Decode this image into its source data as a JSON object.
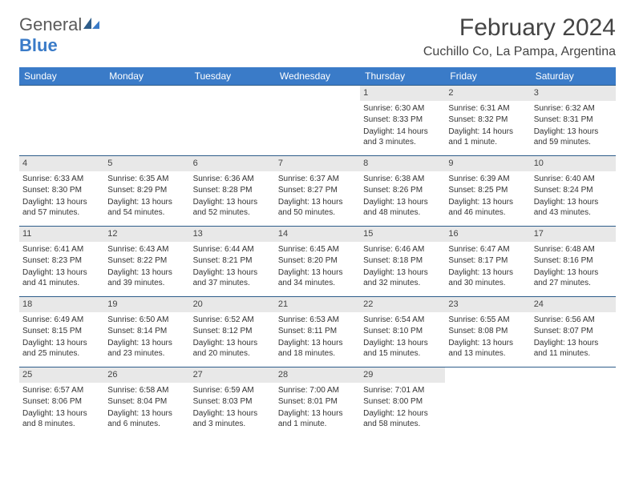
{
  "logo": {
    "text_general": "General",
    "text_blue": "Blue"
  },
  "title": "February 2024",
  "location": "Cuchillo Co, La Pampa, Argentina",
  "colors": {
    "header_bg": "#3a7bc8",
    "header_text": "#ffffff",
    "row_border": "#2e5d8a",
    "daynum_bg": "#e8e8e8",
    "body_text": "#333333"
  },
  "day_names": [
    "Sunday",
    "Monday",
    "Tuesday",
    "Wednesday",
    "Thursday",
    "Friday",
    "Saturday"
  ],
  "weeks": [
    [
      {
        "n": "",
        "sr": "",
        "ss": "",
        "dl": ""
      },
      {
        "n": "",
        "sr": "",
        "ss": "",
        "dl": ""
      },
      {
        "n": "",
        "sr": "",
        "ss": "",
        "dl": ""
      },
      {
        "n": "",
        "sr": "",
        "ss": "",
        "dl": ""
      },
      {
        "n": "1",
        "sr": "6:30 AM",
        "ss": "8:33 PM",
        "dl": "14 hours and 3 minutes."
      },
      {
        "n": "2",
        "sr": "6:31 AM",
        "ss": "8:32 PM",
        "dl": "14 hours and 1 minute."
      },
      {
        "n": "3",
        "sr": "6:32 AM",
        "ss": "8:31 PM",
        "dl": "13 hours and 59 minutes."
      }
    ],
    [
      {
        "n": "4",
        "sr": "6:33 AM",
        "ss": "8:30 PM",
        "dl": "13 hours and 57 minutes."
      },
      {
        "n": "5",
        "sr": "6:35 AM",
        "ss": "8:29 PM",
        "dl": "13 hours and 54 minutes."
      },
      {
        "n": "6",
        "sr": "6:36 AM",
        "ss": "8:28 PM",
        "dl": "13 hours and 52 minutes."
      },
      {
        "n": "7",
        "sr": "6:37 AM",
        "ss": "8:27 PM",
        "dl": "13 hours and 50 minutes."
      },
      {
        "n": "8",
        "sr": "6:38 AM",
        "ss": "8:26 PM",
        "dl": "13 hours and 48 minutes."
      },
      {
        "n": "9",
        "sr": "6:39 AM",
        "ss": "8:25 PM",
        "dl": "13 hours and 46 minutes."
      },
      {
        "n": "10",
        "sr": "6:40 AM",
        "ss": "8:24 PM",
        "dl": "13 hours and 43 minutes."
      }
    ],
    [
      {
        "n": "11",
        "sr": "6:41 AM",
        "ss": "8:23 PM",
        "dl": "13 hours and 41 minutes."
      },
      {
        "n": "12",
        "sr": "6:43 AM",
        "ss": "8:22 PM",
        "dl": "13 hours and 39 minutes."
      },
      {
        "n": "13",
        "sr": "6:44 AM",
        "ss": "8:21 PM",
        "dl": "13 hours and 37 minutes."
      },
      {
        "n": "14",
        "sr": "6:45 AM",
        "ss": "8:20 PM",
        "dl": "13 hours and 34 minutes."
      },
      {
        "n": "15",
        "sr": "6:46 AM",
        "ss": "8:18 PM",
        "dl": "13 hours and 32 minutes."
      },
      {
        "n": "16",
        "sr": "6:47 AM",
        "ss": "8:17 PM",
        "dl": "13 hours and 30 minutes."
      },
      {
        "n": "17",
        "sr": "6:48 AM",
        "ss": "8:16 PM",
        "dl": "13 hours and 27 minutes."
      }
    ],
    [
      {
        "n": "18",
        "sr": "6:49 AM",
        "ss": "8:15 PM",
        "dl": "13 hours and 25 minutes."
      },
      {
        "n": "19",
        "sr": "6:50 AM",
        "ss": "8:14 PM",
        "dl": "13 hours and 23 minutes."
      },
      {
        "n": "20",
        "sr": "6:52 AM",
        "ss": "8:12 PM",
        "dl": "13 hours and 20 minutes."
      },
      {
        "n": "21",
        "sr": "6:53 AM",
        "ss": "8:11 PM",
        "dl": "13 hours and 18 minutes."
      },
      {
        "n": "22",
        "sr": "6:54 AM",
        "ss": "8:10 PM",
        "dl": "13 hours and 15 minutes."
      },
      {
        "n": "23",
        "sr": "6:55 AM",
        "ss": "8:08 PM",
        "dl": "13 hours and 13 minutes."
      },
      {
        "n": "24",
        "sr": "6:56 AM",
        "ss": "8:07 PM",
        "dl": "13 hours and 11 minutes."
      }
    ],
    [
      {
        "n": "25",
        "sr": "6:57 AM",
        "ss": "8:06 PM",
        "dl": "13 hours and 8 minutes."
      },
      {
        "n": "26",
        "sr": "6:58 AM",
        "ss": "8:04 PM",
        "dl": "13 hours and 6 minutes."
      },
      {
        "n": "27",
        "sr": "6:59 AM",
        "ss": "8:03 PM",
        "dl": "13 hours and 3 minutes."
      },
      {
        "n": "28",
        "sr": "7:00 AM",
        "ss": "8:01 PM",
        "dl": "13 hours and 1 minute."
      },
      {
        "n": "29",
        "sr": "7:01 AM",
        "ss": "8:00 PM",
        "dl": "12 hours and 58 minutes."
      },
      {
        "n": "",
        "sr": "",
        "ss": "",
        "dl": ""
      },
      {
        "n": "",
        "sr": "",
        "ss": "",
        "dl": ""
      }
    ]
  ],
  "labels": {
    "sunrise": "Sunrise:",
    "sunset": "Sunset:",
    "daylight": "Daylight:"
  }
}
